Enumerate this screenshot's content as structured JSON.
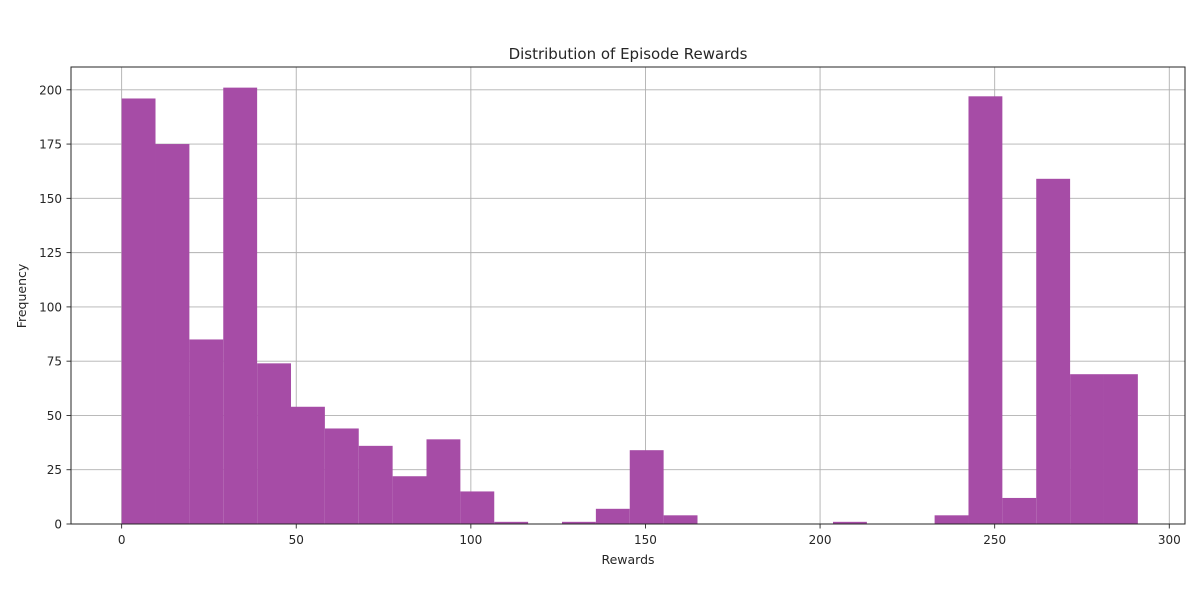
{
  "chart_data": {
    "type": "bar",
    "title": "Distribution of Episode Rewards",
    "xlabel": "Rewards",
    "ylabel": "Frequency",
    "xlim": [
      -14.5,
      304.5
    ],
    "ylim": [
      0,
      210.5
    ],
    "xticks": [
      0,
      50,
      100,
      150,
      200,
      250,
      300
    ],
    "yticks": [
      0,
      25,
      50,
      75,
      100,
      125,
      150,
      175,
      200
    ],
    "grid": true,
    "bar_color": "#a64ca6",
    "bin_edges": [
      0,
      9.7,
      19.4,
      29.1,
      38.8,
      48.5,
      58.2,
      67.9,
      77.6,
      87.3,
      97,
      106.7,
      116.4,
      126.1,
      135.8,
      145.5,
      155.2,
      164.9,
      174.6,
      184.3,
      194,
      203.7,
      213.4,
      223.1,
      232.8,
      242.5,
      252.2,
      261.9,
      271.6,
      281.3,
      291
    ],
    "values": [
      196,
      175,
      85,
      201,
      74,
      54,
      44,
      36,
      22,
      39,
      15,
      1,
      0,
      1,
      7,
      34,
      4,
      0,
      0,
      0,
      0,
      1,
      0,
      0,
      4,
      197,
      12,
      159,
      69,
      69
    ]
  }
}
